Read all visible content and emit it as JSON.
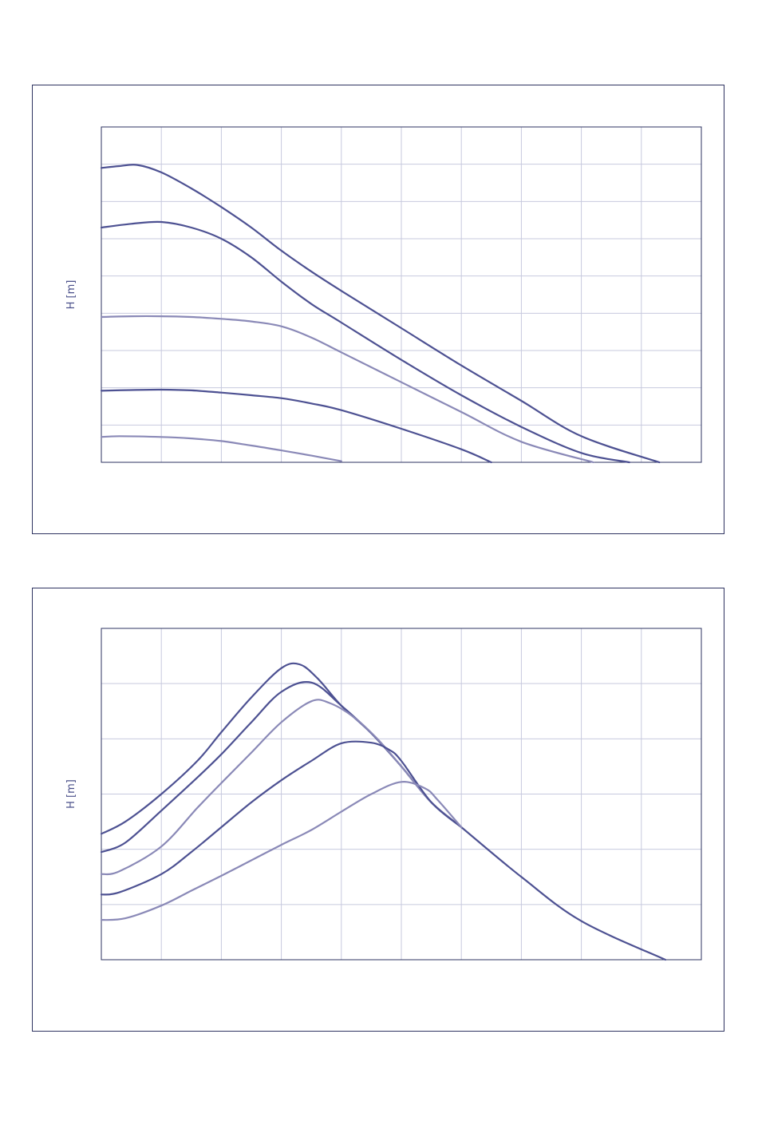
{
  "colors": {
    "frame": "#2e3360",
    "grid": "#c7c9de",
    "dark_line": "#4d5192",
    "light_line": "#8a89b7",
    "label": "#4a4f8a"
  },
  "chart_data": [
    {
      "type": "line",
      "title": "",
      "xlabel": "",
      "ylabel": "H [m]",
      "xlim": [
        0,
        10
      ],
      "ylim": [
        0,
        9
      ],
      "grid": true,
      "x_gridlines": 10,
      "y_gridlines": 9,
      "series": [
        {
          "tone": "dark",
          "x": [
            0,
            0.3,
            0.6,
            1.0,
            1.5,
            2.0,
            2.5,
            3.0,
            3.5,
            4.0,
            5.0,
            6.0,
            7.0,
            8.0,
            9.3
          ],
          "y": [
            7.9,
            7.95,
            7.98,
            7.78,
            7.35,
            6.85,
            6.3,
            5.68,
            5.12,
            4.6,
            3.6,
            2.6,
            1.65,
            0.7,
            0.0
          ]
        },
        {
          "tone": "dark",
          "x": [
            0,
            0.5,
            1.0,
            1.5,
            2.0,
            2.5,
            3.0,
            3.5,
            4.0,
            5.0,
            6.0,
            7.0,
            8.0,
            8.8
          ],
          "y": [
            6.3,
            6.4,
            6.45,
            6.3,
            6.0,
            5.5,
            4.85,
            4.25,
            3.75,
            2.75,
            1.8,
            0.95,
            0.25,
            0.0
          ]
        },
        {
          "tone": "light",
          "x": [
            0,
            0.5,
            1.0,
            1.5,
            2.0,
            2.5,
            3.0,
            3.5,
            4.0,
            5.0,
            6.0,
            7.0,
            8.2
          ],
          "y": [
            3.9,
            3.92,
            3.92,
            3.9,
            3.85,
            3.78,
            3.65,
            3.35,
            2.95,
            2.15,
            1.35,
            0.55,
            0.0
          ]
        },
        {
          "tone": "dark",
          "x": [
            0,
            0.5,
            1.0,
            1.5,
            2.0,
            2.5,
            3.0,
            3.5,
            4.0,
            5.0,
            6.0,
            6.5
          ],
          "y": [
            1.92,
            1.94,
            1.95,
            1.93,
            1.87,
            1.8,
            1.72,
            1.58,
            1.4,
            0.9,
            0.35,
            0.0
          ]
        },
        {
          "tone": "light",
          "x": [
            0,
            0.3,
            1.0,
            1.5,
            2.0,
            2.5,
            3.0,
            3.5,
            4.0
          ],
          "y": [
            0.68,
            0.7,
            0.68,
            0.64,
            0.57,
            0.45,
            0.32,
            0.18,
            0.03
          ]
        }
      ]
    },
    {
      "type": "line",
      "title": "",
      "xlabel": "",
      "ylabel": "H [m]",
      "xlim": [
        0,
        10
      ],
      "ylim": [
        0,
        6
      ],
      "grid": true,
      "x_gridlines": 10,
      "y_gridlines": 6,
      "series": [
        {
          "tone": "dark",
          "x": [
            0,
            0.4,
            1.0,
            1.6,
            2.0,
            2.5,
            3.0,
            3.3,
            3.6,
            4.0,
            4.5,
            5.0,
            5.5,
            6.0,
            7.0,
            8.0,
            9.4
          ],
          "y": [
            2.28,
            2.5,
            3.0,
            3.6,
            4.12,
            4.75,
            5.28,
            5.35,
            5.1,
            4.6,
            4.1,
            3.5,
            2.85,
            2.4,
            1.5,
            0.7,
            0.0
          ]
        },
        {
          "tone": "dark",
          "x": [
            0,
            0.4,
            1.0,
            1.6,
            2.0,
            2.5,
            3.0,
            3.5,
            4.0,
            4.5,
            5.0,
            5.5,
            6.0
          ],
          "y": [
            1.95,
            2.12,
            2.7,
            3.3,
            3.72,
            4.3,
            4.85,
            5.02,
            4.6,
            4.1,
            3.5,
            2.85,
            2.4
          ]
        },
        {
          "tone": "light",
          "x": [
            0,
            0.3,
            1.0,
            1.6,
            2.0,
            2.5,
            3.0,
            3.5,
            3.8,
            4.2,
            4.6,
            5.0,
            5.5,
            6.0
          ],
          "y": [
            1.55,
            1.6,
            2.05,
            2.75,
            3.2,
            3.75,
            4.3,
            4.68,
            4.65,
            4.4,
            4.0,
            3.5,
            2.85,
            2.4
          ]
        },
        {
          "tone": "dark",
          "x": [
            0,
            0.3,
            1.0,
            1.5,
            2.0,
            2.5,
            3.0,
            3.5,
            4.0,
            4.5,
            4.8,
            5.0,
            5.5,
            6.0
          ],
          "y": [
            1.18,
            1.22,
            1.55,
            1.95,
            2.4,
            2.85,
            3.25,
            3.6,
            3.92,
            3.93,
            3.8,
            3.6,
            2.85,
            2.4
          ]
        },
        {
          "tone": "light",
          "x": [
            0,
            0.4,
            1.0,
            1.5,
            2.0,
            2.5,
            3.0,
            3.5,
            4.0,
            4.5,
            5.0,
            5.4,
            5.6,
            6.0
          ],
          "y": [
            0.72,
            0.75,
            0.98,
            1.25,
            1.52,
            1.8,
            2.08,
            2.35,
            2.68,
            3.0,
            3.22,
            3.1,
            2.9,
            2.4
          ]
        }
      ]
    }
  ]
}
